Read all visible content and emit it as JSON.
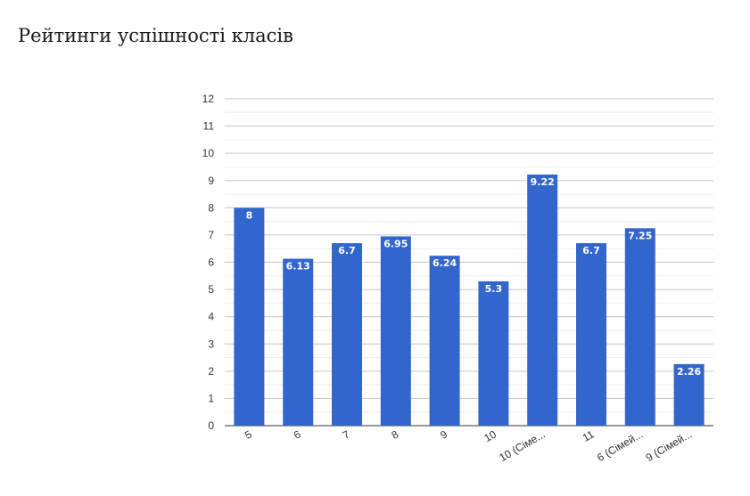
{
  "chart_data": {
    "type": "bar",
    "title": "Рейтинги успішності класів",
    "categories": [
      "5",
      "6",
      "7",
      "8",
      "9",
      "10",
      "10 (Сіме...",
      "11",
      "6 (Сімей...",
      "9 (Сімей..."
    ],
    "values": [
      8,
      6.13,
      6.7,
      6.95,
      6.24,
      5.3,
      9.22,
      6.7,
      7.25,
      2.26
    ],
    "data_labels": [
      "8",
      "6.13",
      "6.7",
      "6.95",
      "6.24",
      "5.3",
      "9.22",
      "6.7",
      "7.25",
      "2.26"
    ],
    "yticks": [
      "0",
      "1",
      "2",
      "3",
      "4",
      "5",
      "6",
      "7",
      "8",
      "9",
      "10",
      "11",
      "12"
    ],
    "ylim": [
      0,
      12
    ],
    "grid": true,
    "bar_color": "#3366cc"
  }
}
